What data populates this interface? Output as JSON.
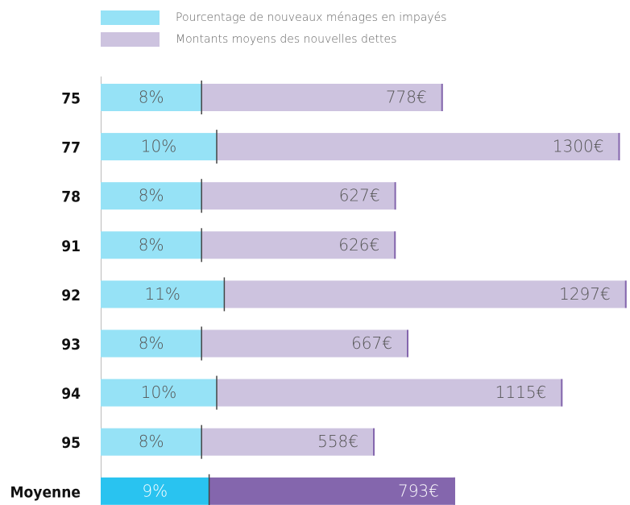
{
  "chart_data": {
    "type": "stacked-bar-horizontal",
    "categories": [
      "75",
      "77",
      "78",
      "91",
      "92",
      "93",
      "94",
      "95",
      "Moyenne"
    ],
    "series": [
      {
        "name": "Pourcentage de nouveaux ménages en impayés",
        "color": "#96e2f6",
        "colors": [
          "#96e2f6",
          "#96e2f6",
          "#96e2f6",
          "#96e2f6",
          "#96e2f6",
          "#96e2f6",
          "#96e2f6",
          "#96e2f6",
          "#29c3f0"
        ],
        "values": [
          8,
          10,
          8,
          8,
          11,
          8,
          10,
          8,
          9
        ],
        "value_labels": [
          "8%",
          "10%",
          "8%",
          "8%",
          "11%",
          "8%",
          "10%",
          "8%",
          "9%"
        ]
      },
      {
        "name": "Montants moyens des nouvelles dettes",
        "color": "#cdc3df",
        "colors": [
          "#cdc3df",
          "#cdc3df",
          "#cdc3df",
          "#cdc3df",
          "#cdc3df",
          "#cdc3df",
          "#cdc3df",
          "#cdc3df",
          "#8466ad"
        ],
        "values": [
          778,
          1300,
          627,
          626,
          1297,
          667,
          1115,
          558,
          793
        ],
        "value_labels": [
          "778€",
          "1300€",
          "627€",
          "626€",
          "1297€",
          "667€",
          "1115€",
          "558€",
          "793€"
        ]
      }
    ]
  }
}
